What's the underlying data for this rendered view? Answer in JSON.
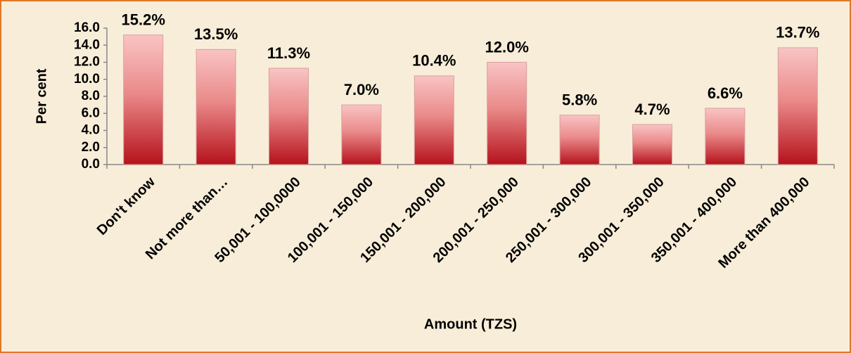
{
  "chart_data": {
    "type": "bar",
    "categories": [
      "Don't know",
      "Not more than…",
      "50,001 - 100,0000",
      "100,001 - 150,000",
      "150,001 - 200,000",
      "200,001 - 250,000",
      "250,001 - 300,000",
      "300,001 - 350,000",
      "350,001 - 400,000",
      "More than 400,000"
    ],
    "values": [
      15.2,
      13.5,
      11.3,
      7.0,
      10.4,
      12.0,
      5.8,
      4.7,
      6.6,
      13.7
    ],
    "value_labels": [
      "15.2%",
      "13.5%",
      "11.3%",
      "7.0%",
      "10.4%",
      "12.0%",
      "5.8%",
      "4.7%",
      "6.6%",
      "13.7%"
    ],
    "color": "#b5121b",
    "y_label": "Per cent",
    "x_label": "Amount (TZS)",
    "ylim": [
      0,
      16
    ],
    "yticks": [
      {
        "value": 0,
        "label": "0.0"
      },
      {
        "value": 2,
        "label": "2.0"
      },
      {
        "value": 4,
        "label": "4.0"
      },
      {
        "value": 6,
        "label": "6.0"
      },
      {
        "value": 8,
        "label": "8.0"
      },
      {
        "value": 10,
        "label": "10.0"
      },
      {
        "value": 12,
        "label": "12.0"
      },
      {
        "value": 14,
        "label": "14.0"
      },
      {
        "value": 16,
        "label": "16.0"
      }
    ]
  }
}
